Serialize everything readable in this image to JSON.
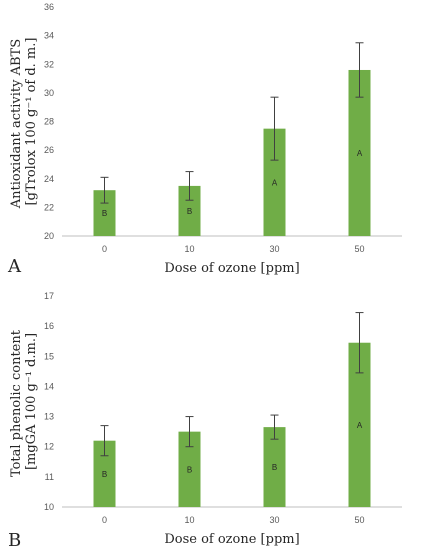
{
  "chart_data": [
    {
      "panel": "A",
      "type": "bar",
      "categories": [
        "0",
        "10",
        "30",
        "50"
      ],
      "values": [
        23.2,
        23.5,
        27.5,
        31.6
      ],
      "errors": [
        0.9,
        1.0,
        2.2,
        1.9
      ],
      "letters": [
        "B",
        "B",
        "A",
        "A"
      ],
      "xlabel": "Dose of ozone [ppm]",
      "ylabel_lines": [
        "Antioxidant activity ABTS",
        "[gTrolox 100 g⁻¹ of d. m.]"
      ],
      "ylim": [
        20,
        36
      ],
      "yticks": [
        20,
        22,
        24,
        26,
        28,
        30,
        32,
        34,
        36
      ],
      "grid": false,
      "bar_color": "#70ad47"
    },
    {
      "panel": "B",
      "type": "bar",
      "categories": [
        "0",
        "10",
        "30",
        "50"
      ],
      "values": [
        12.2,
        12.5,
        12.65,
        15.45
      ],
      "errors": [
        0.5,
        0.5,
        0.4,
        1.0
      ],
      "letters": [
        "B",
        "B",
        "B",
        "A"
      ],
      "xlabel": "Dose of ozone [ppm]",
      "ylabel_lines": [
        "Total phenolic content",
        "[mgGA 100 g⁻¹ d.m.]"
      ],
      "ylim": [
        10,
        17
      ],
      "yticks": [
        10,
        11,
        12,
        13,
        14,
        15,
        16,
        17
      ],
      "grid": false,
      "bar_color": "#70ad47"
    }
  ]
}
